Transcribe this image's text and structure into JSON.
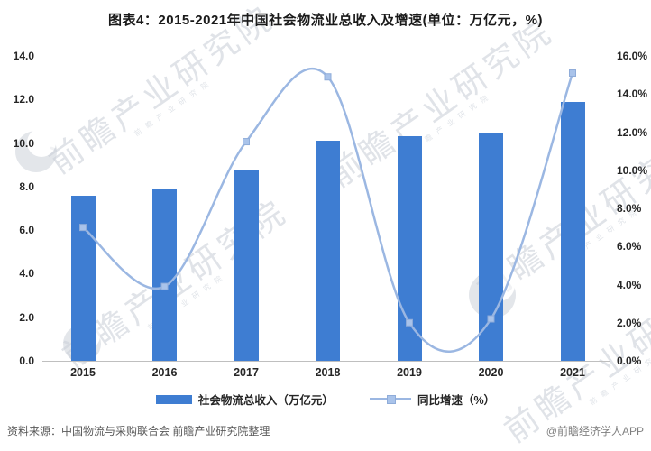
{
  "title": "图表4：2015-2021年中国社会物流业总收入及增速(单位：万亿元，%)",
  "chart_data": {
    "type": "bar",
    "subtype": "bar+line combo",
    "categories": [
      "2015",
      "2016",
      "2017",
      "2018",
      "2019",
      "2020",
      "2021"
    ],
    "series": [
      {
        "name": "社会物流总收入（万亿元）",
        "type": "bar",
        "axis": "left",
        "color": "#3E7DD2",
        "values": [
          7.6,
          7.9,
          8.8,
          10.1,
          10.3,
          10.5,
          11.9
        ]
      },
      {
        "name": "同比增速（%）",
        "type": "line",
        "axis": "right",
        "color": "#9BB7E2",
        "marker_color": "#A9C3EA",
        "marker_edge_color": "#8FACD9",
        "values": [
          7.0,
          3.9,
          11.5,
          14.9,
          2.0,
          2.2,
          15.1
        ]
      }
    ],
    "left_axis": {
      "min": 0,
      "max": 14,
      "step": 2,
      "tick_labels": [
        "0.0",
        "2.0",
        "4.0",
        "6.0",
        "8.0",
        "10.0",
        "12.0",
        "14.0"
      ]
    },
    "right_axis": {
      "min": 0,
      "max": 16,
      "step": 2,
      "tick_labels": [
        "0.0%",
        "2.0%",
        "4.0%",
        "6.0%",
        "8.0%",
        "10.0%",
        "12.0%",
        "14.0%",
        "16.0%"
      ]
    },
    "grid": "off",
    "legend_position": "bottom"
  },
  "watermark": {
    "text": "前瞻产业研究院",
    "subtext": "前瞻产业研究院"
  },
  "footer": {
    "source": "资料来源：中国物流与采购联合会 前瞻产业研究院整理",
    "credit": "@前瞻经济学人APP"
  }
}
